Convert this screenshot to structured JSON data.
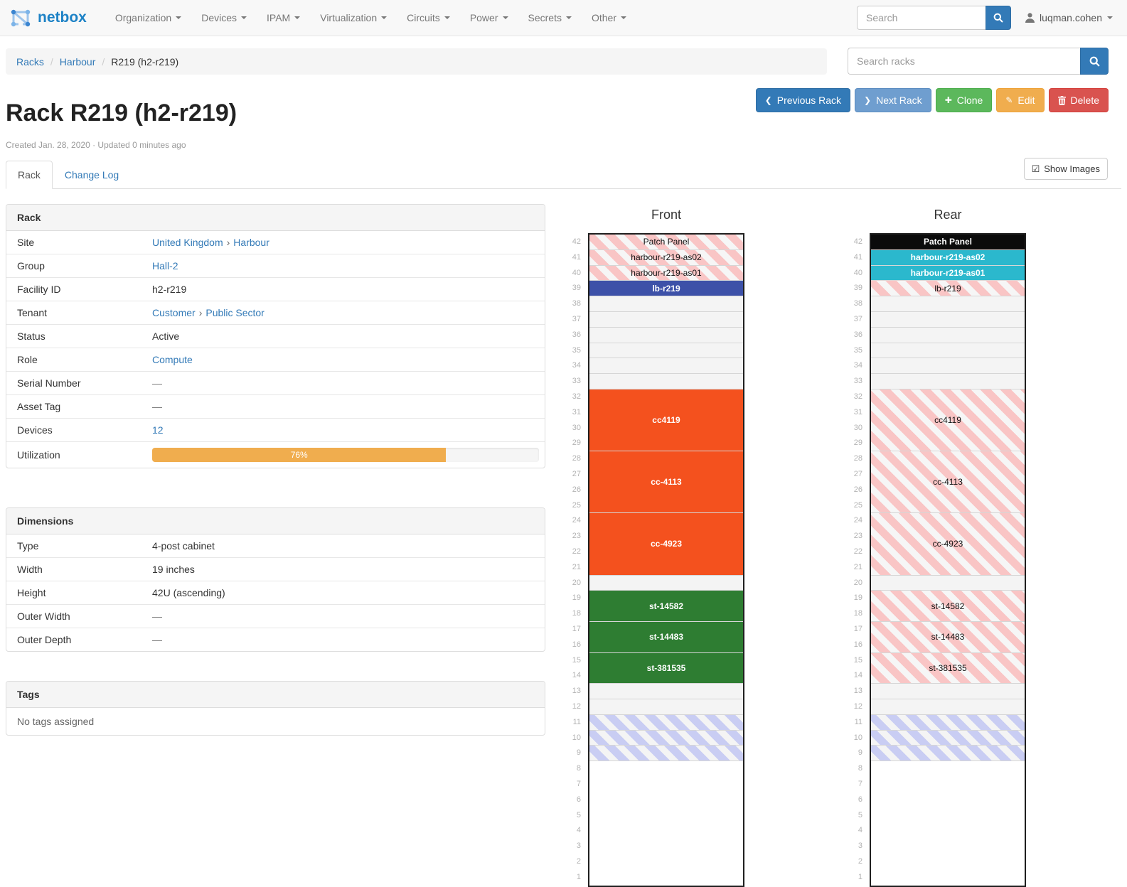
{
  "navbar": {
    "brand": "netbox",
    "items": [
      "Organization",
      "Devices",
      "IPAM",
      "Virtualization",
      "Circuits",
      "Power",
      "Secrets",
      "Other"
    ],
    "search_placeholder": "Search",
    "user": "luqman.cohen"
  },
  "icons": {
    "chevron_left": "❮",
    "chevron_right": "❯",
    "plus": "✚",
    "pencil": "✎",
    "check_square": "☑"
  },
  "symbols": {
    "breadcrumb_separator": "/",
    "link_separator": "›"
  },
  "breadcrumb": {
    "items": [
      {
        "label": "Racks",
        "link": true
      },
      {
        "label": "Harbour",
        "link": true
      },
      {
        "label": "R219 (h2-r219)",
        "link": false
      }
    ],
    "search_placeholder": "Search racks"
  },
  "actions": {
    "previous": "Previous Rack",
    "next": "Next Rack",
    "clone": "Clone",
    "edit": "Edit",
    "delete": "Delete"
  },
  "header": {
    "title": "Rack R219 (h2-r219)",
    "meta": "Created Jan. 28, 2020 · Updated 0 minutes ago"
  },
  "tabs": {
    "items": [
      {
        "label": "Rack",
        "active": true
      },
      {
        "label": "Change Log",
        "active": false
      }
    ],
    "show_images": "Show Images"
  },
  "rack_panel": {
    "title": "Rack",
    "rows": [
      {
        "label": "Site",
        "parts": [
          {
            "text": "United Kingdom",
            "link": true
          },
          {
            "text": "Harbour",
            "link": true
          }
        ]
      },
      {
        "label": "Group",
        "parts": [
          {
            "text": "Hall-2",
            "link": true
          }
        ]
      },
      {
        "label": "Facility ID",
        "parts": [
          {
            "text": "h2-r219"
          }
        ]
      },
      {
        "label": "Tenant",
        "parts": [
          {
            "text": "Customer",
            "link": true
          },
          {
            "text": "Public Sector",
            "link": true
          }
        ]
      },
      {
        "label": "Status",
        "parts": [
          {
            "text": "Active"
          }
        ]
      },
      {
        "label": "Role",
        "parts": [
          {
            "text": "Compute",
            "link": true
          }
        ]
      },
      {
        "label": "Serial Number",
        "parts": [
          {
            "text": "—",
            "muted": true
          }
        ]
      },
      {
        "label": "Asset Tag",
        "parts": [
          {
            "text": "—",
            "muted": true
          }
        ]
      },
      {
        "label": "Devices",
        "parts": [
          {
            "text": "12",
            "link": true
          }
        ]
      },
      {
        "label": "Utilization",
        "progress": {
          "percent": 76,
          "label": "76%",
          "color": "#f0ad4e"
        }
      }
    ]
  },
  "dimensions_panel": {
    "title": "Dimensions",
    "rows": [
      {
        "label": "Type",
        "parts": [
          {
            "text": "4-post cabinet"
          }
        ]
      },
      {
        "label": "Width",
        "parts": [
          {
            "text": "19 inches"
          }
        ]
      },
      {
        "label": "Height",
        "parts": [
          {
            "text": "42U (ascending)"
          }
        ]
      },
      {
        "label": "Outer Width",
        "parts": [
          {
            "text": "—",
            "muted": true
          }
        ]
      },
      {
        "label": "Outer Depth",
        "parts": [
          {
            "text": "—",
            "muted": true
          }
        ]
      }
    ]
  },
  "tags_panel": {
    "title": "Tags",
    "empty_text": "No tags assigned"
  },
  "elevation": {
    "top_unit": 42,
    "unit_styles": {
      "hatch-pink": {
        "type": "hatch",
        "bg": "#f6f6f6",
        "stripe": "#f9c5c5",
        "text": "#111111"
      },
      "hatch-blue": {
        "type": "hatch",
        "bg": "#f4f4f4",
        "stripe": "#c9cdf3",
        "text": "#111111"
      },
      "indigo": {
        "type": "solid",
        "bg": "#3d51a8",
        "text": "#ffffff"
      },
      "orange": {
        "type": "solid",
        "bg": "#f4511e",
        "text": "#ffffff"
      },
      "green": {
        "type": "solid",
        "bg": "#2e7d32",
        "text": "#ffffff"
      },
      "cyan": {
        "type": "solid",
        "bg": "#2bb8cd",
        "text": "#ffffff"
      },
      "black": {
        "type": "solid",
        "bg": "#0b0b0b",
        "text": "#ffffff"
      }
    },
    "views": [
      {
        "title": "Front",
        "blocks": [
          {
            "u": 42,
            "n": 1,
            "kind": "device",
            "style": "hatch-pink",
            "label": "Patch Panel"
          },
          {
            "u": 41,
            "n": 1,
            "kind": "device",
            "style": "hatch-pink",
            "label": "harbour-r219-as02"
          },
          {
            "u": 40,
            "n": 1,
            "kind": "device",
            "style": "hatch-pink",
            "label": "harbour-r219-as01"
          },
          {
            "u": 39,
            "n": 1,
            "kind": "device",
            "style": "indigo",
            "label": "lb-r219"
          },
          {
            "u": 38,
            "n": 1,
            "kind": "empty"
          },
          {
            "u": 37,
            "n": 1,
            "kind": "empty"
          },
          {
            "u": 36,
            "n": 1,
            "kind": "empty"
          },
          {
            "u": 35,
            "n": 1,
            "kind": "empty"
          },
          {
            "u": 34,
            "n": 1,
            "kind": "empty"
          },
          {
            "u": 33,
            "n": 1,
            "kind": "empty"
          },
          {
            "u": 32,
            "n": 4,
            "kind": "device",
            "style": "orange",
            "label": "cc4119"
          },
          {
            "u": 28,
            "n": 4,
            "kind": "device",
            "style": "orange",
            "label": "cc-4113"
          },
          {
            "u": 24,
            "n": 4,
            "kind": "device",
            "style": "orange",
            "label": "cc-4923"
          },
          {
            "u": 20,
            "n": 1,
            "kind": "empty"
          },
          {
            "u": 19,
            "n": 2,
            "kind": "device",
            "style": "green",
            "label": "st-14582"
          },
          {
            "u": 17,
            "n": 2,
            "kind": "device",
            "style": "green",
            "label": "st-14483"
          },
          {
            "u": 15,
            "n": 2,
            "kind": "device",
            "style": "green",
            "label": "st-381535"
          },
          {
            "u": 13,
            "n": 1,
            "kind": "empty"
          },
          {
            "u": 12,
            "n": 1,
            "kind": "empty"
          },
          {
            "u": 11,
            "n": 1,
            "kind": "reserved",
            "style": "hatch-blue"
          },
          {
            "u": 10,
            "n": 1,
            "kind": "reserved",
            "style": "hatch-blue"
          },
          {
            "u": 9,
            "n": 1,
            "kind": "reserved",
            "style": "hatch-blue"
          }
        ]
      },
      {
        "title": "Rear",
        "blocks": [
          {
            "u": 42,
            "n": 1,
            "kind": "device",
            "style": "black",
            "label": "Patch Panel"
          },
          {
            "u": 41,
            "n": 1,
            "kind": "device",
            "style": "cyan",
            "label": "harbour-r219-as02"
          },
          {
            "u": 40,
            "n": 1,
            "kind": "device",
            "style": "cyan",
            "label": "harbour-r219-as01"
          },
          {
            "u": 39,
            "n": 1,
            "kind": "device",
            "style": "hatch-pink",
            "label": "lb-r219"
          },
          {
            "u": 38,
            "n": 1,
            "kind": "empty"
          },
          {
            "u": 37,
            "n": 1,
            "kind": "empty"
          },
          {
            "u": 36,
            "n": 1,
            "kind": "empty"
          },
          {
            "u": 35,
            "n": 1,
            "kind": "empty"
          },
          {
            "u": 34,
            "n": 1,
            "kind": "empty"
          },
          {
            "u": 33,
            "n": 1,
            "kind": "empty"
          },
          {
            "u": 32,
            "n": 4,
            "kind": "device",
            "style": "hatch-pink",
            "label": "cc4119"
          },
          {
            "u": 28,
            "n": 4,
            "kind": "device",
            "style": "hatch-pink",
            "label": "cc-4113"
          },
          {
            "u": 24,
            "n": 4,
            "kind": "device",
            "style": "hatch-pink",
            "label": "cc-4923"
          },
          {
            "u": 20,
            "n": 1,
            "kind": "empty"
          },
          {
            "u": 19,
            "n": 2,
            "kind": "device",
            "style": "hatch-pink",
            "label": "st-14582"
          },
          {
            "u": 17,
            "n": 2,
            "kind": "device",
            "style": "hatch-pink",
            "label": "st-14483"
          },
          {
            "u": 15,
            "n": 2,
            "kind": "device",
            "style": "hatch-pink",
            "label": "st-381535"
          },
          {
            "u": 13,
            "n": 1,
            "kind": "empty"
          },
          {
            "u": 12,
            "n": 1,
            "kind": "empty"
          },
          {
            "u": 11,
            "n": 1,
            "kind": "reserved",
            "style": "hatch-blue"
          },
          {
            "u": 10,
            "n": 1,
            "kind": "reserved",
            "style": "hatch-blue"
          },
          {
            "u": 9,
            "n": 1,
            "kind": "reserved",
            "style": "hatch-blue"
          }
        ]
      }
    ]
  }
}
